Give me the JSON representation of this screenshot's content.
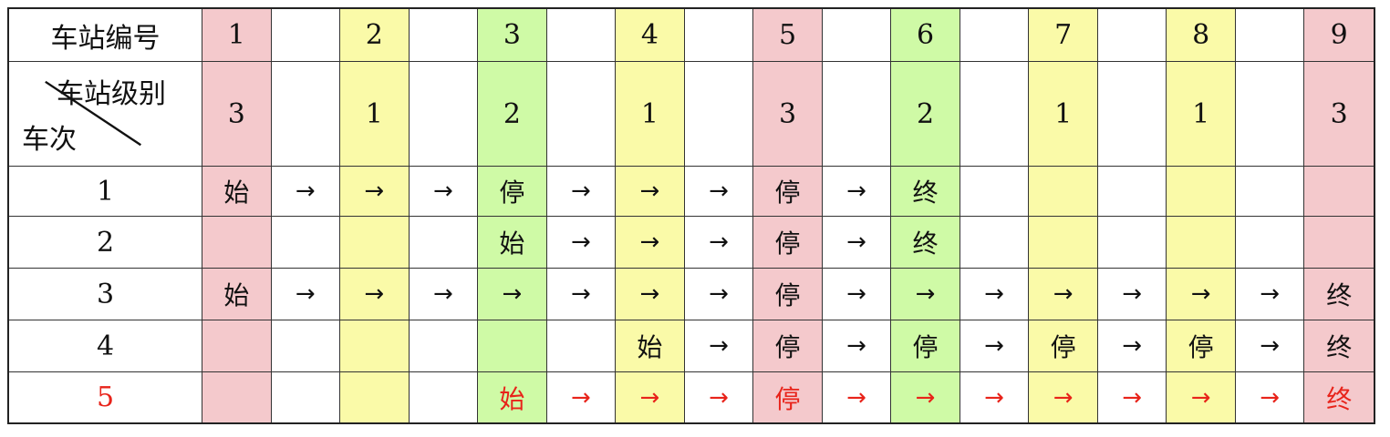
{
  "header": {
    "station_no_label": "车站编号",
    "station_level_label": "车站级别",
    "train_label": "车次"
  },
  "stations": [
    {
      "no": "1",
      "level": "3",
      "color": "#f4c9cc"
    },
    {
      "no": "2",
      "level": "1",
      "color": "#fafaa8"
    },
    {
      "no": "3",
      "level": "2",
      "color": "#cffaa6"
    },
    {
      "no": "4",
      "level": "1",
      "color": "#fafaa8"
    },
    {
      "no": "5",
      "level": "3",
      "color": "#f4c9cc"
    },
    {
      "no": "6",
      "level": "2",
      "color": "#cffaa6"
    },
    {
      "no": "7",
      "level": "1",
      "color": "#fafaa8"
    },
    {
      "no": "8",
      "level": "1",
      "color": "#fafaa8"
    },
    {
      "no": "9",
      "level": "3",
      "color": "#f4c9cc"
    }
  ],
  "highlight_color": "#e8231a",
  "trains": [
    {
      "no": "1",
      "highlight": false,
      "cells": [
        "始",
        "→",
        "→",
        "→",
        "停",
        "→",
        "→",
        "→",
        "停",
        "→",
        "终",
        "",
        "",
        "",
        "",
        "",
        ""
      ]
    },
    {
      "no": "2",
      "highlight": false,
      "cells": [
        "",
        "",
        "",
        "",
        "始",
        "→",
        "→",
        "→",
        "停",
        "→",
        "终",
        "",
        "",
        "",
        "",
        "",
        ""
      ]
    },
    {
      "no": "3",
      "highlight": false,
      "cells": [
        "始",
        "→",
        "→",
        "→",
        "→",
        "→",
        "→",
        "→",
        "停",
        "→",
        "→",
        "→",
        "→",
        "→",
        "→",
        "→",
        "终"
      ]
    },
    {
      "no": "4",
      "highlight": false,
      "cells": [
        "",
        "",
        "",
        "",
        "",
        "",
        "始",
        "→",
        "停",
        "→",
        "停",
        "→",
        "停",
        "→",
        "停",
        "→",
        "终"
      ]
    },
    {
      "no": "5",
      "highlight": true,
      "cells": [
        "",
        "",
        "",
        "",
        "始",
        "→",
        "→",
        "→",
        "停",
        "→",
        "→",
        "→",
        "→",
        "→",
        "→",
        "→",
        "终"
      ]
    }
  ]
}
